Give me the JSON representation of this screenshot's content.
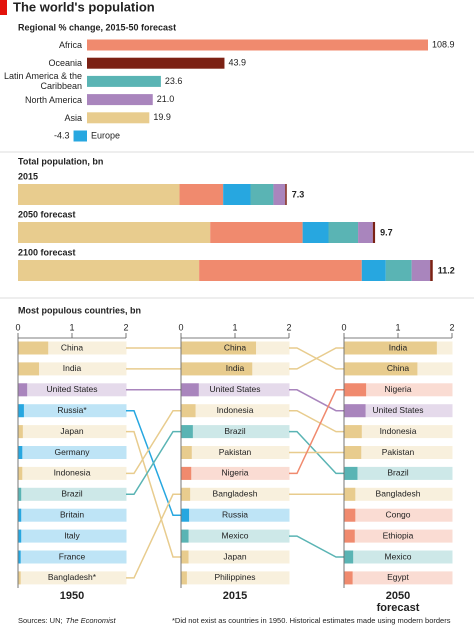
{
  "title": "The world's population",
  "source": "Sources: UN;",
  "source_publication": "The Economist",
  "footnote": "*Did not exist as countries in 1950. Historical estimates made using modern borders",
  "chart_data": [
    {
      "type": "bar",
      "orientation": "horizontal",
      "title": "Regional % change, 2015-50 forecast",
      "categories": [
        "Africa",
        "Oceania",
        "Latin America & the Caribbean",
        "North America",
        "Asia",
        "Europe"
      ],
      "values": [
        108.9,
        43.9,
        23.6,
        21.0,
        19.9,
        -4.3
      ],
      "value_labels": [
        "108.9",
        "43.9",
        "23.6",
        "21.0",
        "19.9",
        "-4.3"
      ],
      "colors": [
        "#f08a6e",
        "#7b2114",
        "#5ab4b4",
        "#a985bd",
        "#e8cc8e",
        "#27a7e0"
      ]
    },
    {
      "type": "stacked-bar",
      "orientation": "horizontal",
      "title": "Total population, bn",
      "categories": [
        "2015",
        "2050 forecast",
        "2100 forecast"
      ],
      "series": [
        {
          "color": "#e8cc8e",
          "values": [
            4.37,
            5.2,
            4.9
          ]
        },
        {
          "color": "#f08a6e",
          "values": [
            1.18,
            2.5,
            4.4
          ]
        },
        {
          "color": "#27a7e0",
          "values": [
            0.74,
            0.7,
            0.65
          ]
        },
        {
          "color": "#5ab4b4",
          "values": [
            0.62,
            0.8,
            0.7
          ]
        },
        {
          "color": "#a985bd",
          "values": [
            0.32,
            0.4,
            0.5
          ]
        },
        {
          "color": "#7b2114",
          "values": [
            0.04,
            0.06,
            0.07
          ]
        }
      ],
      "totals": [
        7.3,
        9.7,
        11.2
      ]
    },
    {
      "type": "slope-bar",
      "title": "Most populous countries, bn",
      "xlim": [
        0,
        2
      ],
      "xticks": [
        0,
        1,
        2
      ],
      "panels": [
        {
          "label": "1950",
          "categories": [
            "China",
            "India",
            "United States",
            "Russia*",
            "Japan",
            "Germany",
            "Indonesia",
            "Brazil",
            "Britain",
            "Italy",
            "France",
            "Bangladesh*"
          ],
          "values": [
            0.55,
            0.38,
            0.16,
            0.1,
            0.08,
            0.07,
            0.07,
            0.05,
            0.05,
            0.05,
            0.04,
            0.04
          ],
          "colors": [
            "#e8cc8e",
            "#e8cc8e",
            "#a985bd",
            "#27a7e0",
            "#e8cc8e",
            "#27a7e0",
            "#e8cc8e",
            "#5ab4b4",
            "#27a7e0",
            "#27a7e0",
            "#27a7e0",
            "#e8cc8e"
          ]
        },
        {
          "label": "2015",
          "categories": [
            "China",
            "India",
            "United States",
            "Indonesia",
            "Brazil",
            "Pakistan",
            "Nigeria",
            "Bangladesh",
            "Russia",
            "Mexico",
            "Japan",
            "Philippines"
          ],
          "values": [
            1.38,
            1.31,
            0.32,
            0.26,
            0.21,
            0.19,
            0.18,
            0.16,
            0.14,
            0.13,
            0.13,
            0.1
          ],
          "colors": [
            "#e8cc8e",
            "#e8cc8e",
            "#a985bd",
            "#e8cc8e",
            "#5ab4b4",
            "#e8cc8e",
            "#f08a6e",
            "#e8cc8e",
            "#27a7e0",
            "#5ab4b4",
            "#e8cc8e",
            "#e8cc8e"
          ]
        },
        {
          "label": "2050 forecast",
          "categories": [
            "India",
            "China",
            "Nigeria",
            "United States",
            "Indonesia",
            "Pakistan",
            "Brazil",
            "Bangladesh",
            "Congo",
            "Ethiopia",
            "Mexico",
            "Egypt"
          ],
          "values": [
            1.71,
            1.35,
            0.4,
            0.39,
            0.32,
            0.31,
            0.24,
            0.2,
            0.2,
            0.19,
            0.16,
            0.15
          ],
          "colors": [
            "#e8cc8e",
            "#e8cc8e",
            "#f08a6e",
            "#a985bd",
            "#e8cc8e",
            "#e8cc8e",
            "#5ab4b4",
            "#e8cc8e",
            "#f08a6e",
            "#f08a6e",
            "#5ab4b4",
            "#f08a6e"
          ]
        }
      ]
    }
  ]
}
